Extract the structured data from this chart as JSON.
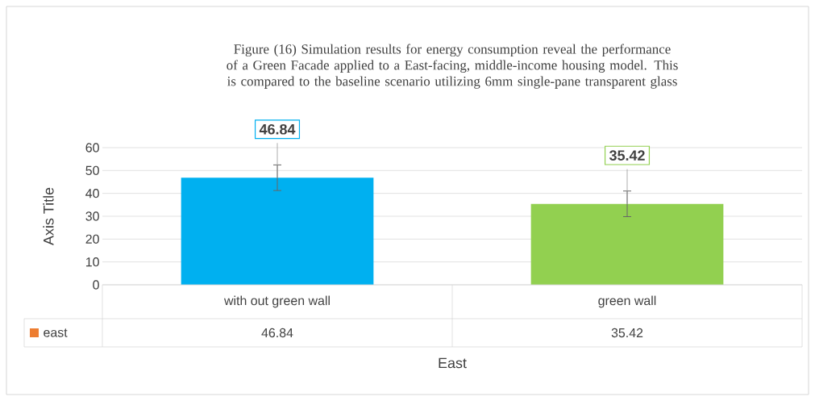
{
  "chart_data": {
    "type": "bar",
    "title": "Figure (16) Simulation results for energy consumption reveal the performance of a Green Facade applied to a East-facing, middle-income housing model. This is compared to the baseline scenario utilizing 6mm single-pane transparent glass",
    "xlabel": "East",
    "ylabel": "Axis Title",
    "categories": [
      "with out green wall",
      "green wall"
    ],
    "series": [
      {
        "name": "east",
        "color": "#ed7d31",
        "colors": [
          "#00b0f0",
          "#92d050"
        ],
        "values": [
          46.84,
          35.42
        ],
        "value_labels": [
          "46.84",
          "35.42"
        ],
        "errors": [
          5.6,
          5.6
        ]
      }
    ],
    "ylim": [
      0,
      60
    ],
    "yticks": [
      0,
      10,
      20,
      30,
      40,
      50,
      60
    ],
    "grid": "y",
    "data_labels": true
  }
}
